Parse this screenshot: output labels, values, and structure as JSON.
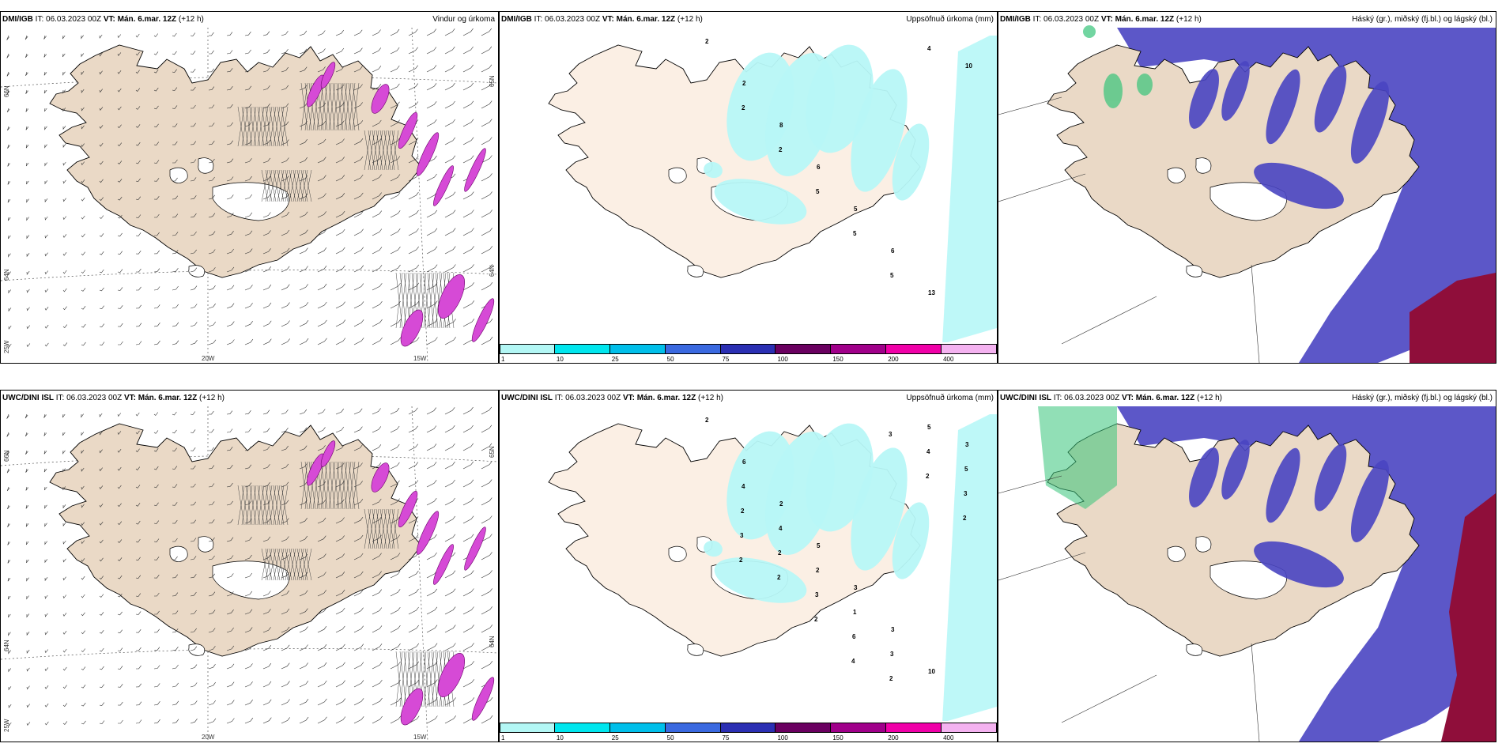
{
  "rows": [
    {
      "model": "DMI/IGB",
      "it": "IT: 06.03.2023 00Z",
      "vt": "VT: Mán. 6.mar. 12Z",
      "lead": "(+12 h)",
      "panels": [
        {
          "title": "Vindur og úrkoma",
          "lat_labels": [
            "66N",
            "64N",
            "25W"
          ],
          "lat_labels_right": [
            "65N",
            "64N"
          ],
          "lon_labels": [
            "20W",
            "15W"
          ]
        },
        {
          "title": "Uppsöfnuð úrkoma (mm)",
          "numbers": [
            "2",
            "2",
            "8",
            "6",
            "5",
            "6",
            "13",
            "10",
            "2",
            "2",
            "5",
            "5",
            "5",
            "4"
          ]
        },
        {
          "title": "Háský (gr.), miðský (fj.bl.) og lágský (bl.)"
        }
      ]
    },
    {
      "model": "UWC/DINI ISL",
      "it": "IT: 06.03.2023 00Z",
      "vt": "VT: Mán. 6.mar. 12Z",
      "lead": "(+12 h)",
      "panels": [
        {
          "title": "",
          "lat_labels": [
            "66N",
            "64N",
            "25W"
          ],
          "lat_labels_right": [
            "65N",
            "64N"
          ],
          "lon_labels": [
            "20W",
            "15W"
          ]
        },
        {
          "title": "Uppsöfnuð úrkoma (mm)",
          "numbers": [
            "2",
            "6",
            "2",
            "5",
            "3",
            "3",
            "10",
            "3",
            "4",
            "4",
            "2",
            "1",
            "3",
            "5",
            "5",
            "2",
            "2",
            "3",
            "6",
            "2",
            "4",
            "3",
            "3",
            "2",
            "2",
            "4",
            "3",
            "2",
            "2",
            "2"
          ]
        },
        {
          "title": "Háský (gr.), miðský (fj.bl.) og lágský (bl.)"
        }
      ]
    }
  ],
  "colorbar": {
    "ticks": [
      "1",
      "10",
      "25",
      "50",
      "75",
      "100",
      "150",
      "200",
      "400"
    ],
    "colors": [
      "#b3f7f5",
      "#00e6ee",
      "#00bfea",
      "#3a69e0",
      "#2b2fb3",
      "#6a0060",
      "#a0008a",
      "#f000a8",
      "#f4b2f0"
    ]
  },
  "colors": {
    "land": "#ead9c6",
    "land_light": "#fbefe4",
    "cyan_precip": "#b7f7f7",
    "magenta_precip": "#d64ad6",
    "cloud_high": "#37c47a",
    "cloud_mid": "#4a45c2",
    "cloud_low": "#8f0e3a",
    "outline": "#000000"
  }
}
